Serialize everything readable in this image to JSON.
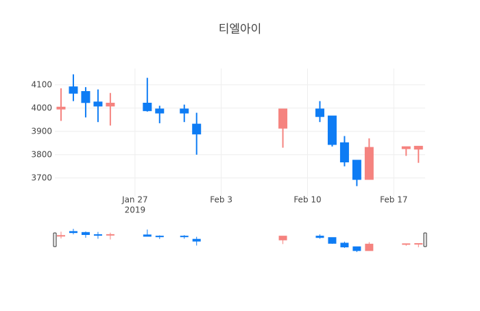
{
  "chart_data": {
    "type": "candlestick",
    "title": "티엘아이",
    "x": [
      "2019-01-21",
      "2019-01-22",
      "2019-01-23",
      "2019-01-24",
      "2019-01-25",
      "2019-01-28",
      "2019-01-29",
      "2019-01-31",
      "2019-02-01",
      "2019-02-08",
      "2019-02-11",
      "2019-02-12",
      "2019-02-13",
      "2019-02-14",
      "2019-02-15",
      "2019-02-18",
      "2019-02-19"
    ],
    "open": [
      3995,
      4090,
      4070,
      4025,
      4010,
      4020,
      3995,
      3995,
      3930,
      3915,
      3995,
      3965,
      3850,
      3775,
      3695,
      3825,
      3825
    ],
    "high": [
      4085,
      4145,
      4090,
      4080,
      4065,
      4130,
      4010,
      4015,
      3980,
      3995,
      4030,
      3965,
      3880,
      3775,
      3870,
      3830,
      3835
    ],
    "low": [
      3945,
      4030,
      3960,
      3940,
      3925,
      3985,
      3935,
      3940,
      3800,
      3830,
      3940,
      3835,
      3750,
      3665,
      3695,
      3795,
      3765
    ],
    "close": [
      4000,
      4065,
      4025,
      4010,
      4020,
      3990,
      3980,
      3980,
      3890,
      3995,
      3965,
      3845,
      3770,
      3695,
      3830,
      3830,
      3835
    ],
    "increasing_color": "#f5837f",
    "decreasing_color": "#0e7cf4",
    "xlim": [
      "2019-01-20T12:00",
      "2019-02-19T13:00"
    ],
    "xticks": [
      {
        "value": "2019-01-27",
        "label": "Jan 27",
        "year": "2019"
      },
      {
        "value": "2019-02-03",
        "label": "Feb 3"
      },
      {
        "value": "2019-02-10",
        "label": "Feb 10"
      },
      {
        "value": "2019-02-17",
        "label": "Feb 17"
      }
    ],
    "ylim": [
      3620,
      4170
    ],
    "yticks": [
      3700,
      3800,
      3900,
      4000,
      4100
    ],
    "grid": true,
    "rangeslider": true
  }
}
